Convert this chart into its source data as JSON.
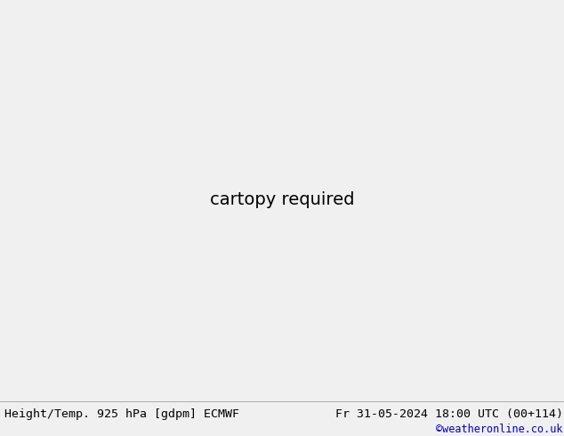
{
  "title_left": "Height/Temp. 925 hPa [gdpm] ECMWF",
  "title_right": "Fr 31-05-2024 18:00 UTC (00+114)",
  "copyright": "©weatheronline.co.uk",
  "copyright_color": "#0000cc",
  "land_color": "#c8e8b4",
  "sea_color": "#e8e8e8",
  "border_color": "#888888",
  "fig_width": 6.34,
  "fig_height": 4.9,
  "footer_fontsize": 9.5,
  "copyright_fontsize": 8.5,
  "map_lon_min": -15.0,
  "map_lon_max": 25.0,
  "map_lat_min": 43.0,
  "map_lat_max": 63.0,
  "black_lw": 1.8,
  "green_color": "#88cc00",
  "green_lw": 1.3,
  "orange_color": "#cc7700",
  "orange_lw": 1.3
}
